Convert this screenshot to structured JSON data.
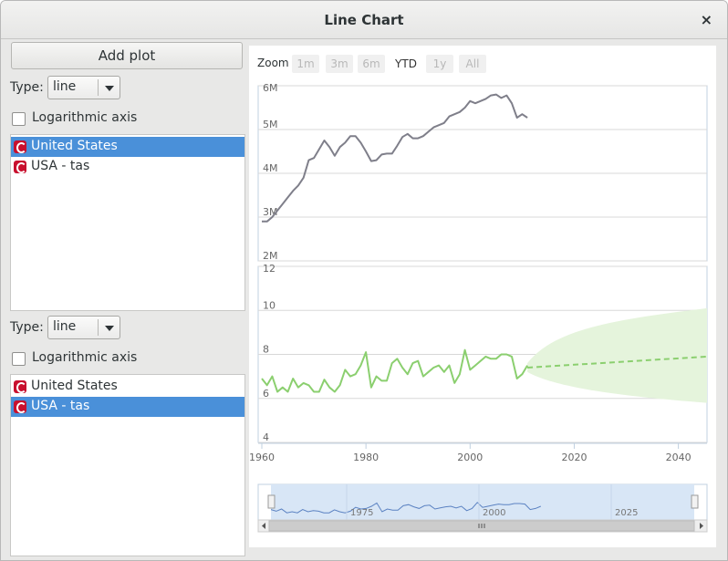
{
  "window": {
    "title": "Line Chart",
    "close_label": "×"
  },
  "left": {
    "add_plot_label": "Add plot",
    "panels": [
      {
        "type_label": "Type:",
        "type_value": "line",
        "log_label": "Logarithmic axis",
        "items": [
          {
            "label": "United States",
            "selected": true
          },
          {
            "label": "USA - tas",
            "selected": false
          }
        ]
      },
      {
        "type_label": "Type:",
        "type_value": "line",
        "log_label": "Logarithmic axis",
        "items": [
          {
            "label": "United States",
            "selected": false
          },
          {
            "label": "USA - tas",
            "selected": true
          }
        ]
      }
    ]
  },
  "chart": {
    "zoom_label": "Zoom",
    "zoom_buttons": [
      {
        "label": "1m",
        "active": false
      },
      {
        "label": "3m",
        "active": false
      },
      {
        "label": "6m",
        "active": false
      },
      {
        "label": "YTD",
        "active": true
      },
      {
        "label": "1y",
        "active": false
      },
      {
        "label": "All",
        "active": false
      }
    ],
    "navigator_labels": [
      "1975",
      "2000",
      "2025"
    ]
  },
  "chart_data": [
    {
      "type": "line",
      "series": [
        {
          "color": "#7f7f8a",
          "x": [
            1960,
            1961,
            1962,
            1963,
            1964,
            1965,
            1966,
            1967,
            1968,
            1969,
            1970,
            1971,
            1972,
            1973,
            1974,
            1975,
            1976,
            1977,
            1978,
            1979,
            1980,
            1981,
            1982,
            1983,
            1984,
            1985,
            1986,
            1987,
            1988,
            1989,
            1990,
            1991,
            1992,
            1993,
            1994,
            1995,
            1996,
            1997,
            1998,
            1999,
            2000,
            2001,
            2002,
            2003,
            2004,
            2005,
            2006,
            2007,
            2008,
            2009,
            2010,
            2011
          ],
          "values": [
            2.9,
            2.9,
            3.0,
            3.15,
            3.3,
            3.45,
            3.6,
            3.72,
            3.9,
            4.3,
            4.35,
            4.55,
            4.75,
            4.6,
            4.4,
            4.6,
            4.7,
            4.85,
            4.85,
            4.7,
            4.5,
            4.28,
            4.3,
            4.43,
            4.45,
            4.45,
            4.63,
            4.83,
            4.9,
            4.8,
            4.8,
            4.85,
            4.95,
            5.05,
            5.1,
            5.15,
            5.3,
            5.35,
            5.4,
            5.5,
            5.65,
            5.6,
            5.65,
            5.7,
            5.78,
            5.8,
            5.72,
            5.78,
            5.6,
            5.27,
            5.35,
            5.27
          ]
        }
      ],
      "ylim": [
        2,
        6
      ],
      "yticks": [
        "2M",
        "3M",
        "4M",
        "5M",
        "6M"
      ]
    },
    {
      "type": "line",
      "series": [
        {
          "color": "#8bcf6f",
          "x": [
            1960,
            1961,
            1962,
            1963,
            1964,
            1965,
            1966,
            1967,
            1968,
            1969,
            1970,
            1971,
            1972,
            1973,
            1974,
            1975,
            1976,
            1977,
            1978,
            1979,
            1980,
            1981,
            1982,
            1983,
            1984,
            1985,
            1986,
            1987,
            1988,
            1989,
            1990,
            1991,
            1992,
            1993,
            1994,
            1995,
            1996,
            1997,
            1998,
            1999,
            2000,
            2001,
            2002,
            2003,
            2004,
            2005,
            2006,
            2007,
            2008,
            2009,
            2010,
            2011
          ],
          "values": [
            6.9,
            6.6,
            7.0,
            6.3,
            6.5,
            6.3,
            6.9,
            6.5,
            6.7,
            6.6,
            6.3,
            6.3,
            6.85,
            6.5,
            6.3,
            6.6,
            7.3,
            7.0,
            7.1,
            7.5,
            8.1,
            6.5,
            7.0,
            6.8,
            6.8,
            7.6,
            7.8,
            7.4,
            7.1,
            7.6,
            7.7,
            7.0,
            7.2,
            7.4,
            7.5,
            7.2,
            7.5,
            6.7,
            7.1,
            8.2,
            7.3,
            7.5,
            7.7,
            7.9,
            7.8,
            7.8,
            8.0,
            8.0,
            7.9,
            6.9,
            7.1,
            7.5
          ]
        }
      ],
      "ylim": [
        4,
        12
      ],
      "yticks": [
        "4",
        "6",
        "8",
        "10",
        "12"
      ]
    }
  ],
  "x_axis": {
    "ticks": [
      "1960",
      "1980",
      "2000",
      "2020",
      "2040"
    ]
  }
}
